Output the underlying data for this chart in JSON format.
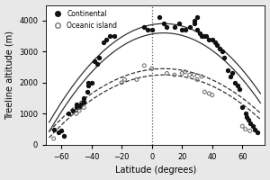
{
  "continental_points": [
    [
      -65,
      500
    ],
    [
      -62,
      400
    ],
    [
      -60,
      450
    ],
    [
      -58,
      300
    ],
    [
      -55,
      1000
    ],
    [
      -52,
      1100
    ],
    [
      -50,
      1300
    ],
    [
      -50,
      1200
    ],
    [
      -48,
      1200
    ],
    [
      -47,
      1300
    ],
    [
      -45,
      1400
    ],
    [
      -45,
      1500
    ],
    [
      -43,
      1700
    ],
    [
      -42,
      1900
    ],
    [
      -42,
      2000
    ],
    [
      -40,
      2000
    ],
    [
      -38,
      2700
    ],
    [
      -36,
      2600
    ],
    [
      -35,
      2800
    ],
    [
      -32,
      3300
    ],
    [
      -30,
      3400
    ],
    [
      -28,
      3500
    ],
    [
      -25,
      3500
    ],
    [
      -5,
      3800
    ],
    [
      -3,
      3700
    ],
    [
      0,
      3700
    ],
    [
      5,
      4100
    ],
    [
      8,
      3900
    ],
    [
      10,
      3800
    ],
    [
      15,
      3800
    ],
    [
      18,
      3900
    ],
    [
      20,
      3700
    ],
    [
      22,
      3700
    ],
    [
      25,
      3800
    ],
    [
      28,
      3900
    ],
    [
      28,
      4000
    ],
    [
      30,
      4100
    ],
    [
      30,
      3700
    ],
    [
      32,
      3600
    ],
    [
      33,
      3500
    ],
    [
      35,
      3500
    ],
    [
      36,
      3500
    ],
    [
      38,
      3400
    ],
    [
      40,
      3400
    ],
    [
      42,
      3300
    ],
    [
      43,
      3200
    ],
    [
      45,
      3100
    ],
    [
      47,
      3000
    ],
    [
      48,
      2800
    ],
    [
      50,
      2400
    ],
    [
      52,
      2200
    ],
    [
      53,
      2300
    ],
    [
      55,
      2000
    ],
    [
      57,
      1900
    ],
    [
      58,
      1800
    ],
    [
      60,
      1200
    ],
    [
      62,
      1000
    ],
    [
      63,
      900
    ],
    [
      64,
      800
    ],
    [
      65,
      700
    ],
    [
      67,
      600
    ],
    [
      68,
      500
    ],
    [
      70,
      400
    ]
  ],
  "oceanic_points": [
    [
      -65,
      200
    ],
    [
      -50,
      1000
    ],
    [
      -48,
      1100
    ],
    [
      -45,
      1200
    ],
    [
      -20,
      2000
    ],
    [
      -18,
      2100
    ],
    [
      -10,
      2100
    ],
    [
      -5,
      2550
    ],
    [
      0,
      2450
    ],
    [
      10,
      2300
    ],
    [
      15,
      2250
    ],
    [
      20,
      2300
    ],
    [
      22,
      2350
    ],
    [
      25,
      2250
    ],
    [
      28,
      2250
    ],
    [
      30,
      2100
    ],
    [
      33,
      2200
    ],
    [
      35,
      1700
    ],
    [
      38,
      1650
    ],
    [
      40,
      1600
    ],
    [
      60,
      600
    ],
    [
      62,
      500
    ],
    [
      65,
      450
    ]
  ],
  "cont_a": -0.55,
  "cont_b": 8.0,
  "cont_c": 3750,
  "cont_x0": 8,
  "oce_a": -0.35,
  "oce_b": 5.0,
  "oce_c": 2350,
  "oce_x0": 8,
  "cont_band": 150,
  "oce_band": 100,
  "xlim": [
    -70,
    75
  ],
  "ylim": [
    0,
    4500
  ],
  "yticks": [
    0,
    1000,
    2000,
    3000,
    4000
  ],
  "xticks": [
    -60,
    -40,
    -20,
    0,
    20,
    40,
    60
  ],
  "xlabel": "Latitude (degrees)",
  "ylabel": "Treeline altitude (m)",
  "vline_x": 0,
  "background_color": "#e8e8e8",
  "plot_bg_color": "#ffffff",
  "continental_color": "#111111",
  "oceanic_color": "#777777",
  "curve_color": "#333333"
}
